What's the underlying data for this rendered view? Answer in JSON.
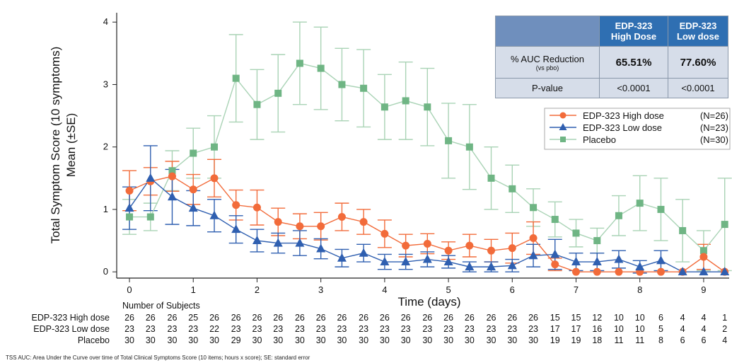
{
  "chart_data": {
    "type": "line",
    "xlabel": "Time (days)",
    "ylabel_lines": [
      "Total Symptom Score (10 symptoms)",
      "Mean (±SE)"
    ],
    "xlim": [
      -0.2,
      9.4
    ],
    "ylim": [
      -0.1,
      4.15
    ],
    "xticks": [
      "0",
      "1",
      "2",
      "3",
      "4",
      "5",
      "6",
      "7",
      "8",
      "9"
    ],
    "yticks": [
      "0",
      "1",
      "2",
      "3",
      "4"
    ],
    "x": [
      0,
      0.33,
      0.67,
      1,
      1.33,
      1.67,
      2,
      2.33,
      2.67,
      3,
      3.33,
      3.67,
      4,
      4.33,
      4.67,
      5,
      5.33,
      5.67,
      6,
      6.33,
      6.67,
      7,
      7.33,
      7.67,
      8,
      8.33,
      8.67,
      9,
      9.33
    ],
    "series": [
      {
        "name": "EDP-323 High dose",
        "n_label": "(N=26)",
        "color": "#f26b3a",
        "marker": "circle",
        "values": [
          1.3,
          1.45,
          1.53,
          1.32,
          1.5,
          1.07,
          1.03,
          0.8,
          0.73,
          0.73,
          0.88,
          0.8,
          0.61,
          0.42,
          0.45,
          0.34,
          0.42,
          0.34,
          0.38,
          0.54,
          0.12,
          0.0,
          0.0,
          0.0,
          0.0,
          0.0,
          0.0,
          0.24,
          0.0
        ],
        "se": [
          0.32,
          0.22,
          0.24,
          0.24,
          0.3,
          0.24,
          0.28,
          0.22,
          0.2,
          0.22,
          0.22,
          0.2,
          0.22,
          0.18,
          0.16,
          0.14,
          0.18,
          0.18,
          0.24,
          0.26,
          0.1,
          0.0,
          0.0,
          0.0,
          0.0,
          0.0,
          0.0,
          0.2,
          0.0
        ]
      },
      {
        "name": "EDP-323 Low dose",
        "n_label": "(N=23)",
        "color": "#2f5fb0",
        "marker": "triangle",
        "values": [
          1.02,
          1.5,
          1.2,
          1.02,
          0.9,
          0.68,
          0.5,
          0.46,
          0.46,
          0.37,
          0.22,
          0.3,
          0.16,
          0.16,
          0.2,
          0.16,
          0.08,
          0.08,
          0.1,
          0.26,
          0.28,
          0.16,
          0.16,
          0.2,
          0.08,
          0.18,
          0.0,
          0.0,
          0.0
        ],
        "se": [
          0.34,
          0.52,
          0.44,
          0.28,
          0.26,
          0.22,
          0.18,
          0.16,
          0.2,
          0.16,
          0.14,
          0.14,
          0.12,
          0.12,
          0.12,
          0.1,
          0.08,
          0.08,
          0.1,
          0.18,
          0.24,
          0.14,
          0.14,
          0.14,
          0.1,
          0.16,
          0.0,
          0.0,
          0.0
        ]
      },
      {
        "name": "Placebo",
        "n_label": "(N=30)",
        "color": "#8fc4a0",
        "marker": "square",
        "values": [
          0.88,
          0.88,
          1.62,
          1.9,
          2.0,
          3.1,
          2.68,
          2.86,
          3.34,
          3.26,
          3.0,
          2.94,
          2.64,
          2.74,
          2.64,
          2.1,
          2.0,
          1.5,
          1.33,
          1.03,
          0.84,
          0.62,
          0.5,
          0.9,
          1.1,
          1.0,
          0.66,
          0.34,
          0.76
        ],
        "se": [
          0.28,
          0.22,
          0.32,
          0.4,
          0.5,
          0.7,
          0.56,
          0.62,
          0.66,
          0.66,
          0.58,
          0.62,
          0.52,
          0.62,
          0.62,
          0.6,
          0.68,
          0.5,
          0.38,
          0.3,
          0.28,
          0.22,
          0.2,
          0.32,
          0.44,
          0.5,
          0.5,
          0.32,
          0.74
        ]
      }
    ],
    "legend_position": "right, below table",
    "grid": false
  },
  "table": {
    "col_headers": [
      "EDP-323\nHigh Dose",
      "EDP-323\nLow dose"
    ],
    "rows": [
      {
        "label": "% AUC Reduction",
        "sublabel": "(vs pbo)",
        "values": [
          "65.51%",
          "77.60%"
        ]
      },
      {
        "label": "P-value",
        "sublabel": "",
        "values": [
          "<0.0001",
          "<0.0001"
        ]
      }
    ]
  },
  "subjects": {
    "title": "Number of Subjects",
    "rows": [
      {
        "label": "EDP-323 High dose",
        "counts": [
          "26",
          "26",
          "26",
          "25",
          "26",
          "26",
          "26",
          "26",
          "26",
          "26",
          "26",
          "26",
          "26",
          "26",
          "26",
          "26",
          "26",
          "26",
          "26",
          "26",
          "15",
          "15",
          "12",
          "10",
          "10",
          "6",
          "4",
          "4",
          "1"
        ]
      },
      {
        "label": "EDP-323 Low dose",
        "counts": [
          "23",
          "23",
          "23",
          "23",
          "22",
          "23",
          "23",
          "23",
          "23",
          "23",
          "23",
          "23",
          "23",
          "23",
          "23",
          "23",
          "23",
          "23",
          "23",
          "23",
          "17",
          "17",
          "16",
          "10",
          "10",
          "5",
          "4",
          "4",
          "2"
        ]
      },
      {
        "label": "Placebo",
        "counts": [
          "30",
          "30",
          "30",
          "30",
          "30",
          "29",
          "30",
          "30",
          "30",
          "30",
          "30",
          "30",
          "30",
          "30",
          "30",
          "30",
          "30",
          "30",
          "30",
          "30",
          "19",
          "19",
          "18",
          "11",
          "11",
          "8",
          "6",
          "6",
          "4"
        ]
      }
    ]
  },
  "footnote": "TSS AUC: Area Under the Curve over time of Total Clinical Symptoms Score (10 items; hours x score); SE: standard error"
}
